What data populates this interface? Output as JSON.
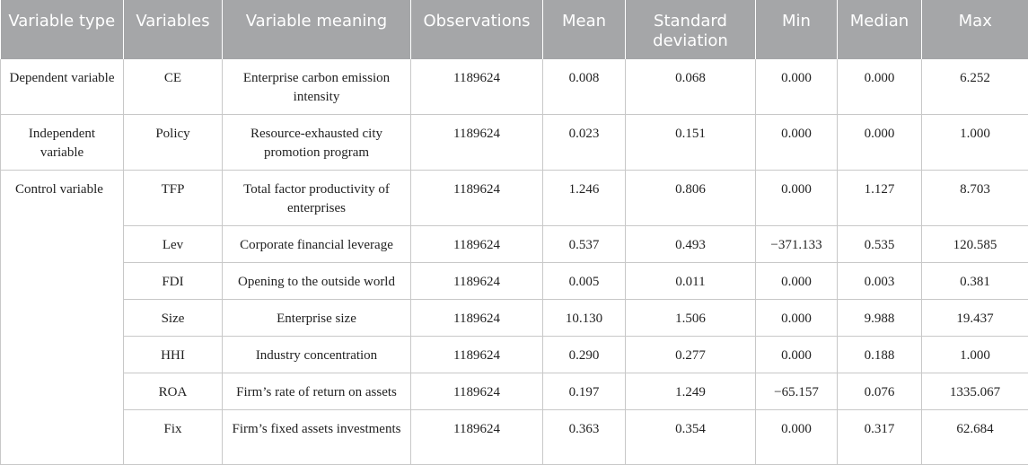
{
  "headers": [
    "Variable type",
    "Variables",
    "Variable meaning",
    "Observations",
    "Mean",
    "Standard deviation",
    "Min",
    "Median",
    "Max"
  ],
  "rows": [
    {
      "type": "Dependent variable",
      "var": "CE",
      "meaning": "Enterprise carbon emission intensity",
      "obs": "1189624",
      "mean": "0.008",
      "sd": "0.068",
      "min": "0.000",
      "median": "0.000",
      "max": "6.252"
    },
    {
      "type": "Independent variable",
      "var": "Policy",
      "meaning": "Resource-exhausted city promotion program",
      "obs": "1189624",
      "mean": "0.023",
      "sd": "0.151",
      "min": "0.000",
      "median": "0.000",
      "max": "1.000"
    },
    {
      "type": "Control variable",
      "var": "TFP",
      "meaning": "Total factor productivity of enterprises",
      "obs": "1189624",
      "mean": "1.246",
      "sd": "0.806",
      "min": "0.000",
      "median": "1.127",
      "max": "8.703"
    },
    {
      "type": "",
      "var": "Lev",
      "meaning": "Corporate financial leverage",
      "obs": "1189624",
      "mean": "0.537",
      "sd": "0.493",
      "min": "−371.133",
      "median": "0.535",
      "max": "120.585"
    },
    {
      "type": "",
      "var": "FDI",
      "meaning": "Opening to the outside world",
      "obs": "1189624",
      "mean": "0.005",
      "sd": "0.011",
      "min": "0.000",
      "median": "0.003",
      "max": "0.381"
    },
    {
      "type": "",
      "var": "Size",
      "meaning": "Enterprise size",
      "obs": "1189624",
      "mean": "10.130",
      "sd": "1.506",
      "min": "0.000",
      "median": "9.988",
      "max": "19.437"
    },
    {
      "type": "",
      "var": "HHI",
      "meaning": "Industry concentration",
      "obs": "1189624",
      "mean": "0.290",
      "sd": "0.277",
      "min": "0.000",
      "median": "0.188",
      "max": "1.000"
    },
    {
      "type": "",
      "var": "ROA",
      "meaning": "Firm’s rate of return on assets",
      "obs": "1189624",
      "mean": "0.197",
      "sd": "1.249",
      "min": "−65.157",
      "median": "0.076",
      "max": "1335.067"
    },
    {
      "type": "",
      "var": "Fix",
      "meaning": "Firm’s fixed assets investments",
      "obs": "1189624",
      "mean": "0.363",
      "sd": "0.354",
      "min": "0.000",
      "median": "0.317",
      "max": "62.684"
    }
  ]
}
